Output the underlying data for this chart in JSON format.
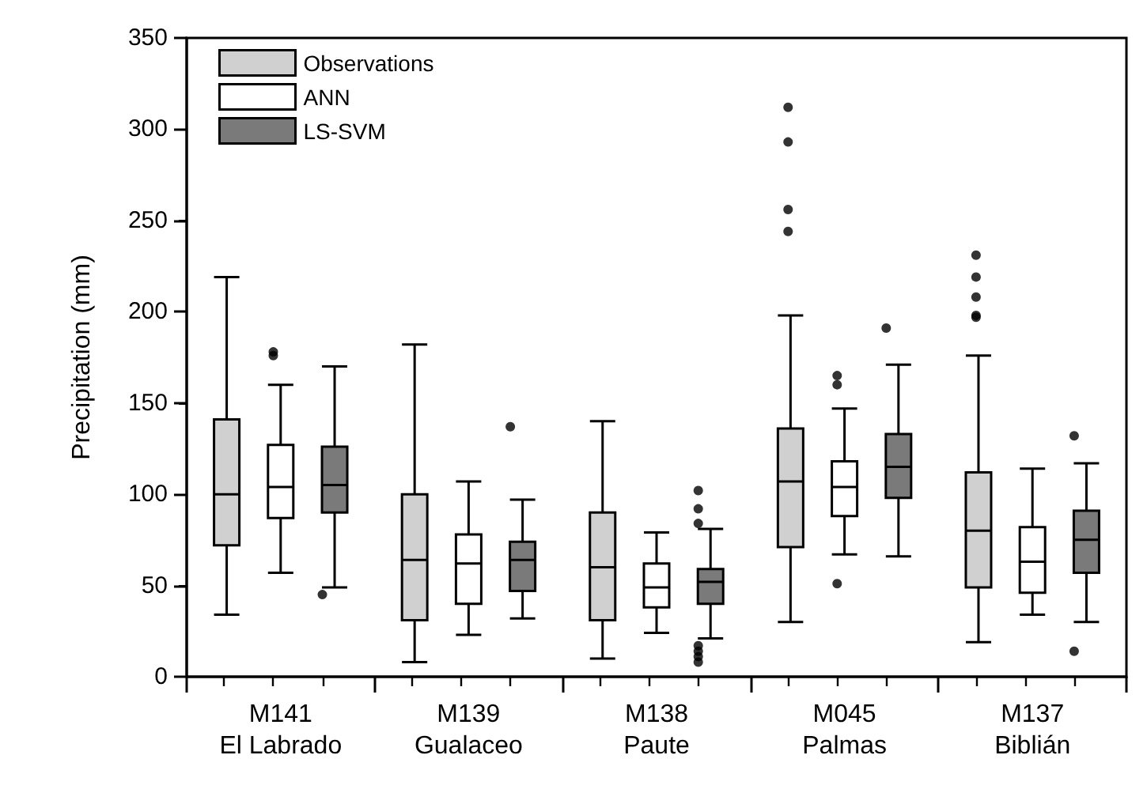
{
  "chart_data": {
    "type": "box",
    "ylabel": "Precipitation (mm)",
    "categories": [
      "M141\nEl Labrado",
      "M139\nGualaceo",
      "M138\nPaute",
      "M045\nPalmas",
      "M137\nBiblián"
    ],
    "ylim": [
      0,
      350
    ],
    "yticks": [
      0,
      50,
      100,
      150,
      200,
      250,
      300,
      350
    ],
    "legend": "top left",
    "series": [
      {
        "name": "Observations",
        "color": "#d0d0d0",
        "boxes": [
          {
            "low": 34,
            "q1": 72,
            "median": 100,
            "q3": 141,
            "high": 219
          },
          {
            "low": 8,
            "q1": 31,
            "median": 64,
            "q3": 100,
            "high": 182
          },
          {
            "low": 10,
            "q1": 31,
            "median": 60,
            "q3": 90,
            "high": 140
          },
          {
            "low": 30,
            "q1": 71,
            "median": 107,
            "q3": 136,
            "high": 198,
            "outliers": [
              312,
              293,
              256,
              244
            ]
          },
          {
            "low": 19,
            "q1": 49,
            "median": 80,
            "q3": 112,
            "high": 176,
            "outliers": [
              231,
              219,
              208,
              198,
              197
            ]
          }
        ]
      },
      {
        "name": "ANN",
        "color": "#ffffff",
        "boxes": [
          {
            "low": 57,
            "q1": 87,
            "median": 104,
            "q3": 127,
            "high": 160,
            "outliers": [
              178,
              176
            ]
          },
          {
            "low": 23,
            "q1": 40,
            "median": 62,
            "q3": 78,
            "high": 107
          },
          {
            "low": 24,
            "q1": 38,
            "median": 49,
            "q3": 62,
            "high": 79
          },
          {
            "low": 67,
            "q1": 88,
            "median": 104,
            "q3": 118,
            "high": 147,
            "outliers": [
              165,
              160,
              51
            ]
          },
          {
            "low": 34,
            "q1": 46,
            "median": 63,
            "q3": 82,
            "high": 114
          }
        ]
      },
      {
        "name": "LS-SVM",
        "color": "#7a7a7a",
        "boxes": [
          {
            "low": 49,
            "q1": 90,
            "median": 105,
            "q3": 126,
            "high": 170,
            "outliers": [
              45
            ]
          },
          {
            "low": 32,
            "q1": 47,
            "median": 64,
            "q3": 74,
            "high": 97,
            "outliers": [
              137
            ]
          },
          {
            "low": 21,
            "q1": 40,
            "median": 52,
            "q3": 59,
            "high": 81,
            "outliers": [
              102,
              92,
              84,
              17,
              14,
              11,
              8
            ]
          },
          {
            "low": 66,
            "q1": 98,
            "median": 115,
            "q3": 133,
            "high": 171,
            "outliers": [
              191
            ]
          },
          {
            "low": 30,
            "q1": 57,
            "median": 75,
            "q3": 91,
            "high": 117,
            "outliers": [
              132,
              14
            ]
          }
        ]
      }
    ]
  }
}
